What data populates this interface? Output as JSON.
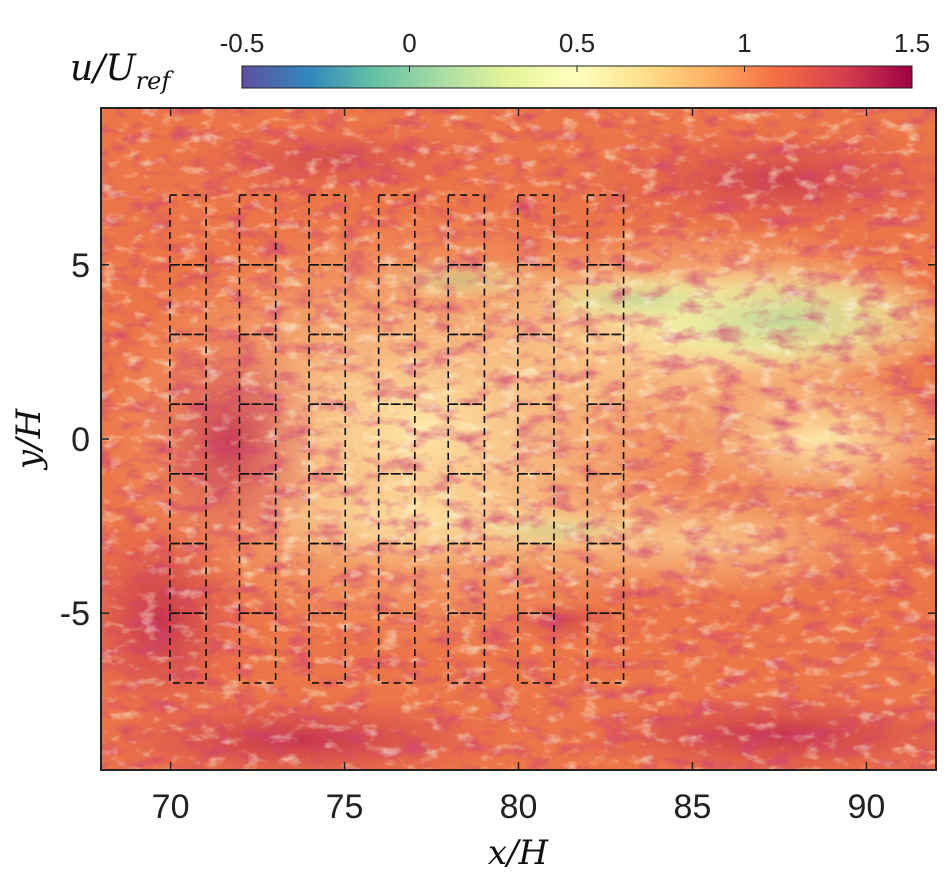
{
  "chart_data": {
    "type": "heatmap",
    "title": "",
    "xlabel": "x/H",
    "ylabel": "y/H",
    "xlim": [
      68,
      92
    ],
    "ylim": [
      -9.5,
      9.5
    ],
    "x_ticks": [
      70,
      75,
      80,
      85,
      90
    ],
    "y_ticks": [
      5,
      0,
      -5
    ],
    "x_tick_labels": [
      "70",
      "75",
      "80",
      "85",
      "90"
    ],
    "y_tick_labels": [
      "5",
      "0",
      "-5"
    ],
    "colorbar": {
      "label": "u/U_ref",
      "label_main": "u/U",
      "label_sub": "ref",
      "range": [
        -0.5,
        1.5
      ],
      "ticks": [
        -0.5,
        0,
        0.5,
        1,
        1.5
      ],
      "tick_labels": [
        "-0.5",
        "0",
        "0.5",
        "1",
        "1.5"
      ],
      "placement": "top",
      "colormap": [
        "#5e4fa2",
        "#3288bd",
        "#66c2a5",
        "#abdda4",
        "#e6f598",
        "#ffffbf",
        "#fee08b",
        "#fdae61",
        "#f46d43",
        "#d53e4f",
        "#9e0142"
      ]
    },
    "overlay_boxes": {
      "style": "dashed",
      "color": "#111111",
      "size": 1.0,
      "x_centers": [
        70.5,
        72.5,
        74.5,
        76.5,
        78.5,
        80.5,
        82.5
      ],
      "y_centers": [
        6,
        4,
        2,
        0,
        -2,
        -4,
        -6
      ]
    }
  }
}
